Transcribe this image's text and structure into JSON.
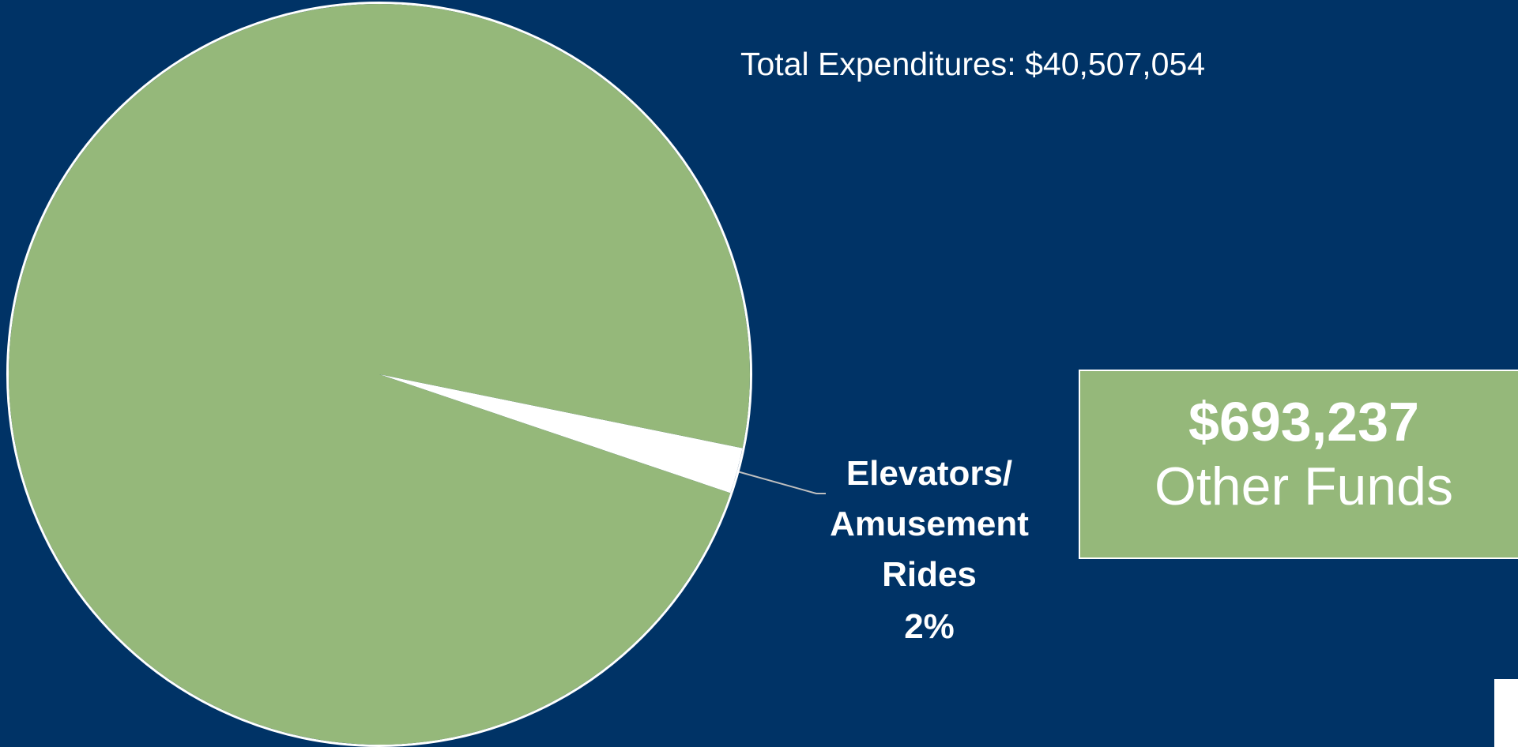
{
  "chart_data": {
    "type": "pie",
    "title": "Total Expenditures: $40,507,054",
    "categories": [
      "Elevators/ Amusement Rides",
      null
    ],
    "values": [
      2,
      98
    ],
    "value_labels": [
      "2%",
      null
    ],
    "colors": [
      "#ffffff",
      "#95b87a"
    ]
  },
  "callout": {
    "amount": "$693,237",
    "label": "Other Funds"
  }
}
